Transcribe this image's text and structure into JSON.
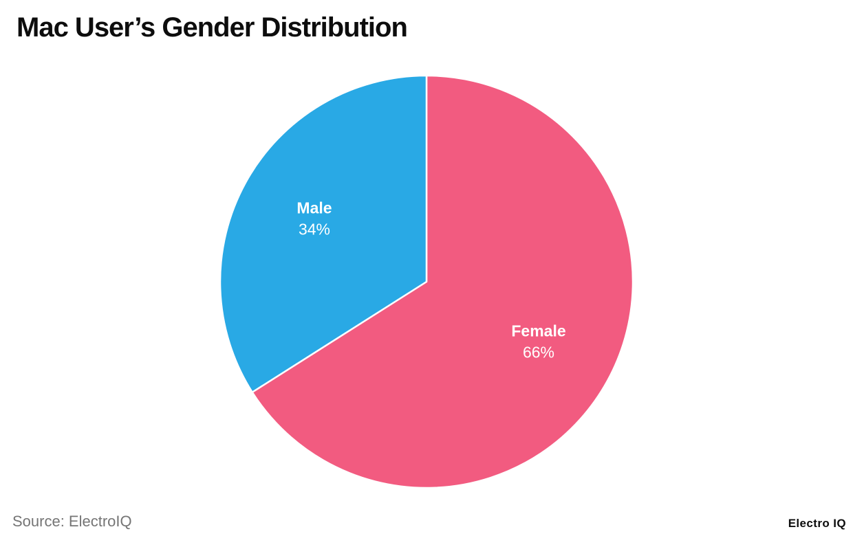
{
  "page": {
    "title": "Mac User’s Gender Distribution",
    "background": "#ffffff"
  },
  "chart_data": {
    "type": "pie",
    "title": "Mac User’s Gender Distribution",
    "start_angle_deg": 0,
    "direction": "clockwise",
    "legend": "none",
    "divider_color": "#ffffff",
    "label_color": "#ffffff",
    "slices": [
      {
        "label": "Female",
        "value": 66,
        "display": "66%",
        "color": "#F25B80"
      },
      {
        "label": "Male",
        "value": 34,
        "display": "34%",
        "color": "#29A9E5"
      }
    ]
  },
  "footer": {
    "source": "Source: ElectroIQ",
    "brand": "Electro IQ"
  }
}
